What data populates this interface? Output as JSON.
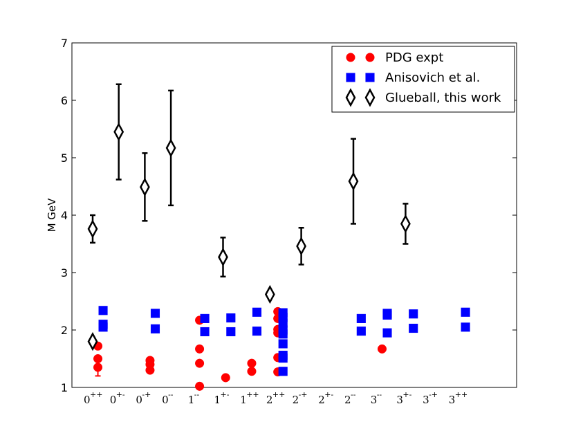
{
  "chart_data": {
    "type": "scatter",
    "ylabel": "M GeV",
    "xlabel": "",
    "ylim": [
      1,
      7
    ],
    "yticks": [
      1,
      2,
      3,
      4,
      5,
      6,
      7
    ],
    "categories": [
      {
        "base": "0",
        "sup": "++"
      },
      {
        "base": "0",
        "sup": "+-"
      },
      {
        "base": "0",
        "sup": "-+"
      },
      {
        "base": "0",
        "sup": "--"
      },
      {
        "base": "1",
        "sup": "--"
      },
      {
        "base": "1",
        "sup": "+-"
      },
      {
        "base": "1",
        "sup": "++"
      },
      {
        "base": "2",
        "sup": "++"
      },
      {
        "base": "2",
        "sup": "-+"
      },
      {
        "base": "2",
        "sup": "+-"
      },
      {
        "base": "2",
        "sup": "--"
      },
      {
        "base": "3",
        "sup": "--"
      },
      {
        "base": "3",
        "sup": "+-"
      },
      {
        "base": "3",
        "sup": "-+"
      },
      {
        "base": "3",
        "sup": "++"
      }
    ],
    "legend_position": "top-right",
    "series": [
      {
        "name": "PDG expt",
        "color": "#ff0000",
        "marker": "circle",
        "points": [
          {
            "x": 0.2,
            "y": 1.72
          },
          {
            "x": 0.2,
            "y": 1.5
          },
          {
            "x": 0.2,
            "y": 1.35,
            "err_low": 0.15,
            "err_high": 0.0
          },
          {
            "x": 2.2,
            "y": 1.47
          },
          {
            "x": 2.2,
            "y": 1.4
          },
          {
            "x": 2.2,
            "y": 1.3
          },
          {
            "x": 4.1,
            "y": 2.17
          },
          {
            "x": 4.1,
            "y": 1.67
          },
          {
            "x": 4.1,
            "y": 1.42
          },
          {
            "x": 4.1,
            "y": 1.02
          },
          {
            "x": 5.1,
            "y": 1.17
          },
          {
            "x": 6.1,
            "y": 1.42
          },
          {
            "x": 6.1,
            "y": 1.28
          },
          {
            "x": 7.1,
            "y": 2.32
          },
          {
            "x": 7.1,
            "y": 2.2
          },
          {
            "x": 7.1,
            "y": 2.01
          },
          {
            "x": 7.1,
            "y": 1.95
          },
          {
            "x": 7.1,
            "y": 1.52
          },
          {
            "x": 7.1,
            "y": 1.27
          },
          {
            "x": 11.1,
            "y": 1.67
          }
        ]
      },
      {
        "name": "Anisovich et al.",
        "color": "#0000ff",
        "marker": "square",
        "points": [
          {
            "x": 0.4,
            "y": 2.34
          },
          {
            "x": 0.4,
            "y": 2.1
          },
          {
            "x": 0.4,
            "y": 2.05
          },
          {
            "x": 2.4,
            "y": 2.29
          },
          {
            "x": 2.4,
            "y": 2.02
          },
          {
            "x": 4.3,
            "y": 2.2
          },
          {
            "x": 4.3,
            "y": 1.97
          },
          {
            "x": 5.3,
            "y": 2.21
          },
          {
            "x": 5.3,
            "y": 1.97
          },
          {
            "x": 6.3,
            "y": 2.31
          },
          {
            "x": 6.3,
            "y": 1.98
          },
          {
            "x": 7.3,
            "y": 2.3
          },
          {
            "x": 7.3,
            "y": 2.22
          },
          {
            "x": 7.3,
            "y": 2.12
          },
          {
            "x": 7.3,
            "y": 2.0
          },
          {
            "x": 7.3,
            "y": 1.93
          },
          {
            "x": 7.3,
            "y": 1.76
          },
          {
            "x": 7.3,
            "y": 1.56
          },
          {
            "x": 7.3,
            "y": 1.51
          },
          {
            "x": 7.3,
            "y": 1.28
          },
          {
            "x": 10.3,
            "y": 2.2
          },
          {
            "x": 10.3,
            "y": 1.98
          },
          {
            "x": 11.3,
            "y": 2.29
          },
          {
            "x": 11.3,
            "y": 2.26
          },
          {
            "x": 11.3,
            "y": 1.95
          },
          {
            "x": 12.3,
            "y": 2.28
          },
          {
            "x": 12.3,
            "y": 2.03
          },
          {
            "x": 14.3,
            "y": 2.31
          },
          {
            "x": 14.3,
            "y": 2.05
          }
        ]
      },
      {
        "name": "Glueball, this work",
        "color": "#000000",
        "marker": "diamond",
        "points": [
          {
            "x": 0.0,
            "y": 3.76,
            "err_low": 0.24,
            "err_high": 0.24
          },
          {
            "x": 0.0,
            "y": 1.8
          },
          {
            "x": 1.0,
            "y": 5.45,
            "err_low": 0.83,
            "err_high": 0.83
          },
          {
            "x": 2.0,
            "y": 4.49,
            "err_low": 0.59,
            "err_high": 0.59
          },
          {
            "x": 3.0,
            "y": 5.17,
            "err_low": 1.0,
            "err_high": 1.0
          },
          {
            "x": 5.0,
            "y": 3.27,
            "err_low": 0.34,
            "err_high": 0.34
          },
          {
            "x": 6.8,
            "y": 2.62
          },
          {
            "x": 8.0,
            "y": 3.46,
            "err_low": 0.32,
            "err_high": 0.32
          },
          {
            "x": 10.0,
            "y": 4.59,
            "err_low": 0.74,
            "err_high": 0.74
          },
          {
            "x": 12.0,
            "y": 3.85,
            "err_low": 0.35,
            "err_high": 0.35
          }
        ]
      }
    ]
  }
}
